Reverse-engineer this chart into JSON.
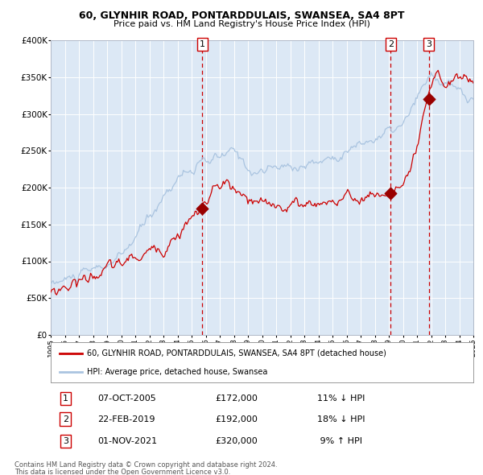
{
  "title1": "60, GLYNHIR ROAD, PONTARDDULAIS, SWANSEA, SA4 8PT",
  "title2": "Price paid vs. HM Land Registry's House Price Index (HPI)",
  "legend_line1": "60, GLYNHIR ROAD, PONTARDDULAIS, SWANSEA, SA4 8PT (detached house)",
  "legend_line2": "HPI: Average price, detached house, Swansea",
  "transactions": [
    {
      "label": "1",
      "date": "07-OCT-2005",
      "price": 172000,
      "hpi_diff": "11% ↓ HPI",
      "x": 2005.77
    },
    {
      "label": "2",
      "date": "22-FEB-2019",
      "price": 192000,
      "hpi_diff": "18% ↓ HPI",
      "x": 2019.14
    },
    {
      "label": "3",
      "date": "01-NOV-2021",
      "price": 320000,
      "hpi_diff": "9% ↑ HPI",
      "x": 2021.83
    }
  ],
  "footer1": "Contains HM Land Registry data © Crown copyright and database right 2024.",
  "footer2": "This data is licensed under the Open Government Licence v3.0.",
  "xmin": 1995,
  "xmax": 2025,
  "ymin": 0,
  "ymax": 400000,
  "hpi_line_color": "#aac4e0",
  "price_line_color": "#cc0000",
  "plot_bg": "#dce8f5",
  "grid_color": "#ffffff",
  "dashed_vline_color": "#cc0000",
  "marker_color": "#990000",
  "fig_bg": "#ffffff"
}
